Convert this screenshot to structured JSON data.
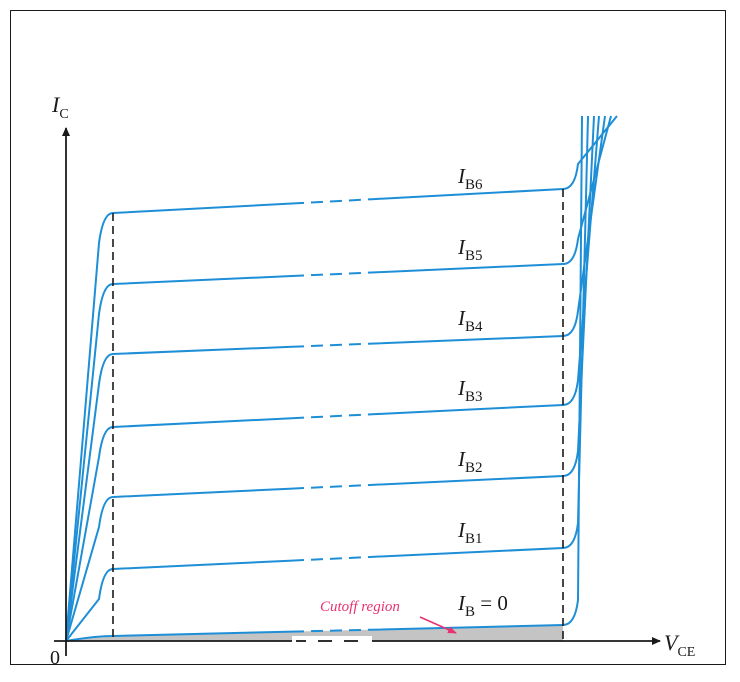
{
  "axes": {
    "y_symbol": "I",
    "y_sub": "C",
    "x_symbol": "V",
    "x_sub": "CE",
    "origin": "0"
  },
  "curves": [
    {
      "sym": "I",
      "sub": "B6"
    },
    {
      "sym": "I",
      "sub": "B5"
    },
    {
      "sym": "I",
      "sub": "B4"
    },
    {
      "sym": "I",
      "sub": "B3"
    },
    {
      "sym": "I",
      "sub": "B2"
    },
    {
      "sym": "I",
      "sub": "B1"
    },
    {
      "sym": "I",
      "sub": "B",
      "suffix": " = 0"
    }
  ],
  "annotation": {
    "cutoff": "Cutoff region"
  },
  "colors": {
    "curve": "#1e8fd6",
    "cutoff_fill": "#c4c4c4",
    "cutoff_text": "#e8336e",
    "axis": "#1a1a1a"
  }
}
